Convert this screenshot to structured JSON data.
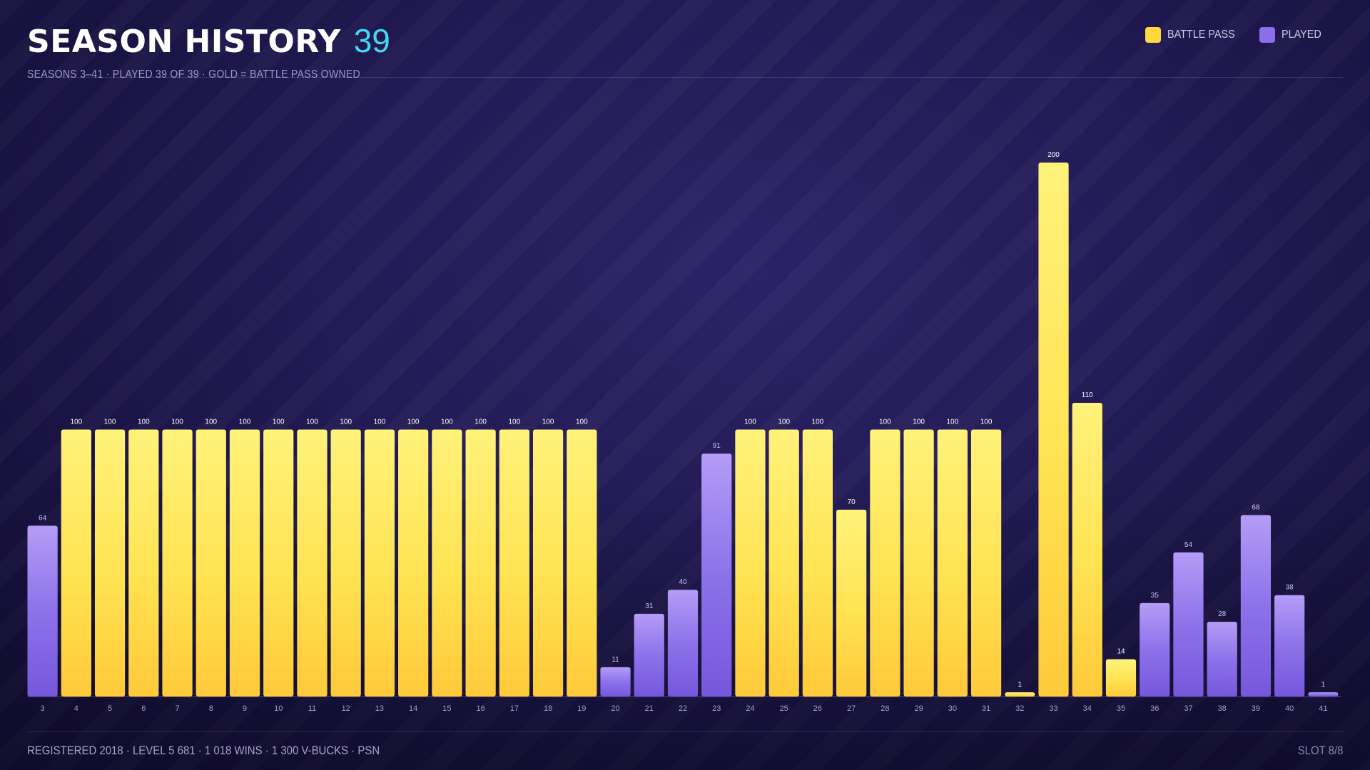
{
  "header": {
    "title": "SEASON HISTORY",
    "count": "39",
    "subtitle": "SEASONS 3–41 · PLAYED 39 OF 39 · GOLD = BATTLE PASS OWNED"
  },
  "legend": {
    "battle_pass": "BATTLE PASS",
    "played": "PLAYED"
  },
  "colors": {
    "battle_pass": "#ffd93d",
    "played": "#8b6fe8",
    "accent": "#43d8f2"
  },
  "footer": {
    "left": "REGISTERED 2018 · LEVEL 5 681 · 1 018 WINS · 1 300 V-BUCKS · PSN",
    "right": "SLOT 8/8"
  },
  "chart_data": {
    "type": "bar",
    "title": "SEASON HISTORY",
    "xlabel": "",
    "ylabel": "",
    "ylim": [
      0,
      200
    ],
    "grid": false,
    "legend_position": "top-right",
    "categories": [
      "3",
      "4",
      "5",
      "6",
      "7",
      "8",
      "9",
      "10",
      "11",
      "12",
      "13",
      "14",
      "15",
      "16",
      "17",
      "18",
      "19",
      "20",
      "21",
      "22",
      "23",
      "24",
      "25",
      "26",
      "27",
      "28",
      "29",
      "30",
      "31",
      "32",
      "33",
      "34",
      "35",
      "36",
      "37",
      "38",
      "39",
      "40",
      "41"
    ],
    "values": [
      64,
      100,
      100,
      100,
      100,
      100,
      100,
      100,
      100,
      100,
      100,
      100,
      100,
      100,
      100,
      100,
      100,
      11,
      31,
      40,
      91,
      100,
      100,
      100,
      70,
      100,
      100,
      100,
      100,
      1,
      200,
      110,
      14,
      35,
      54,
      28,
      68,
      38,
      1
    ],
    "battle_pass": [
      false,
      true,
      true,
      true,
      true,
      true,
      true,
      true,
      true,
      true,
      true,
      true,
      true,
      true,
      true,
      true,
      true,
      false,
      false,
      false,
      false,
      true,
      true,
      true,
      true,
      true,
      true,
      true,
      true,
      true,
      true,
      true,
      true,
      false,
      false,
      false,
      false,
      false,
      false
    ]
  }
}
